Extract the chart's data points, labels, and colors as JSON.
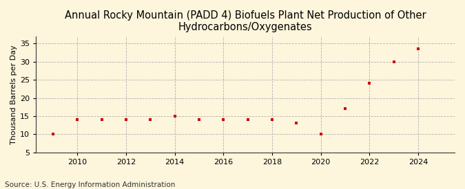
{
  "title": "Annual Rocky Mountain (PADD 4) Biofuels Plant Net Production of Other\nHydrocarbons/Oxygenates",
  "ylabel": "Thousand Barrels per Day",
  "source": "Source: U.S. Energy Information Administration",
  "years": [
    2009,
    2010,
    2011,
    2012,
    2013,
    2014,
    2015,
    2016,
    2017,
    2018,
    2019,
    2020,
    2021,
    2022,
    2023,
    2024
  ],
  "values": [
    10.0,
    14.0,
    14.0,
    14.0,
    14.0,
    15.0,
    14.0,
    14.0,
    14.0,
    14.0,
    13.0,
    10.0,
    17.0,
    24.0,
    30.0,
    33.5
  ],
  "marker_color": "#cc0000",
  "marker": "s",
  "marker_size": 3.5,
  "background_color": "#fdf5dc",
  "ylim": [
    5,
    37
  ],
  "yticks": [
    5,
    10,
    15,
    20,
    25,
    30,
    35
  ],
  "xlim": [
    2008.3,
    2025.5
  ],
  "xticks": [
    2010,
    2012,
    2014,
    2016,
    2018,
    2020,
    2022,
    2024
  ],
  "title_fontsize": 10.5,
  "axis_fontsize": 8,
  "tick_fontsize": 8,
  "source_fontsize": 7.5
}
